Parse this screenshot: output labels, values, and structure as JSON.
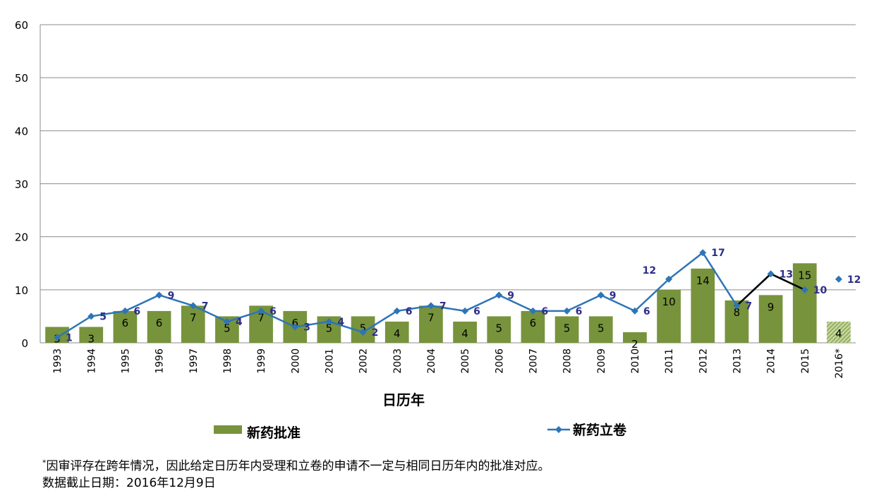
{
  "chart_data": {
    "type": "bar",
    "xlabel": "日历年",
    "ylim": [
      0,
      60
    ],
    "yticks": [
      0,
      10,
      20,
      30,
      40,
      50,
      60
    ],
    "grid": true,
    "legend_position": "bottom",
    "categories": [
      "1993",
      "1994",
      "1995",
      "1996",
      "1997",
      "1998",
      "1999",
      "2000",
      "2001",
      "2002",
      "2003",
      "2004",
      "2005",
      "2006",
      "2007",
      "2008",
      "2009",
      "2010",
      "2011",
      "2012",
      "2013",
      "2014",
      "2015",
      "2016*"
    ],
    "series": [
      {
        "name": "新药批准",
        "type": "bar",
        "color": "#77933c",
        "partial_color": "#9bbb59",
        "values": [
          3,
          3,
          6,
          6,
          7,
          5,
          7,
          6,
          5,
          5,
          4,
          7,
          4,
          5,
          6,
          5,
          5,
          2,
          10,
          14,
          8,
          9,
          15,
          4
        ]
      },
      {
        "name": "新药立卷",
        "type": "line",
        "color": "#2e75b6",
        "marker": "diamond",
        "label_color": "#2e2e8a",
        "values": [
          1,
          5,
          6,
          9,
          7,
          4,
          6,
          3,
          4,
          2,
          6,
          7,
          6,
          9,
          6,
          6,
          9,
          6,
          12,
          17,
          7,
          13,
          10,
          12
        ]
      }
    ],
    "overlay_segments": [
      {
        "from_category": "2013",
        "to_category": "2014",
        "from_value": 7,
        "to_value": 13,
        "color": "#000000"
      },
      {
        "from_category": "2014",
        "to_category": "2015",
        "from_value": 13,
        "to_value": 10,
        "color": "#000000"
      }
    ]
  },
  "footnotes": {
    "star": "*",
    "line1": "因审评存在跨年情况，因此给定日历年内受理和立卷的申请不一定与相同日历年内的批准对应。",
    "line2": "数据截止日期：2016年12月9日"
  }
}
